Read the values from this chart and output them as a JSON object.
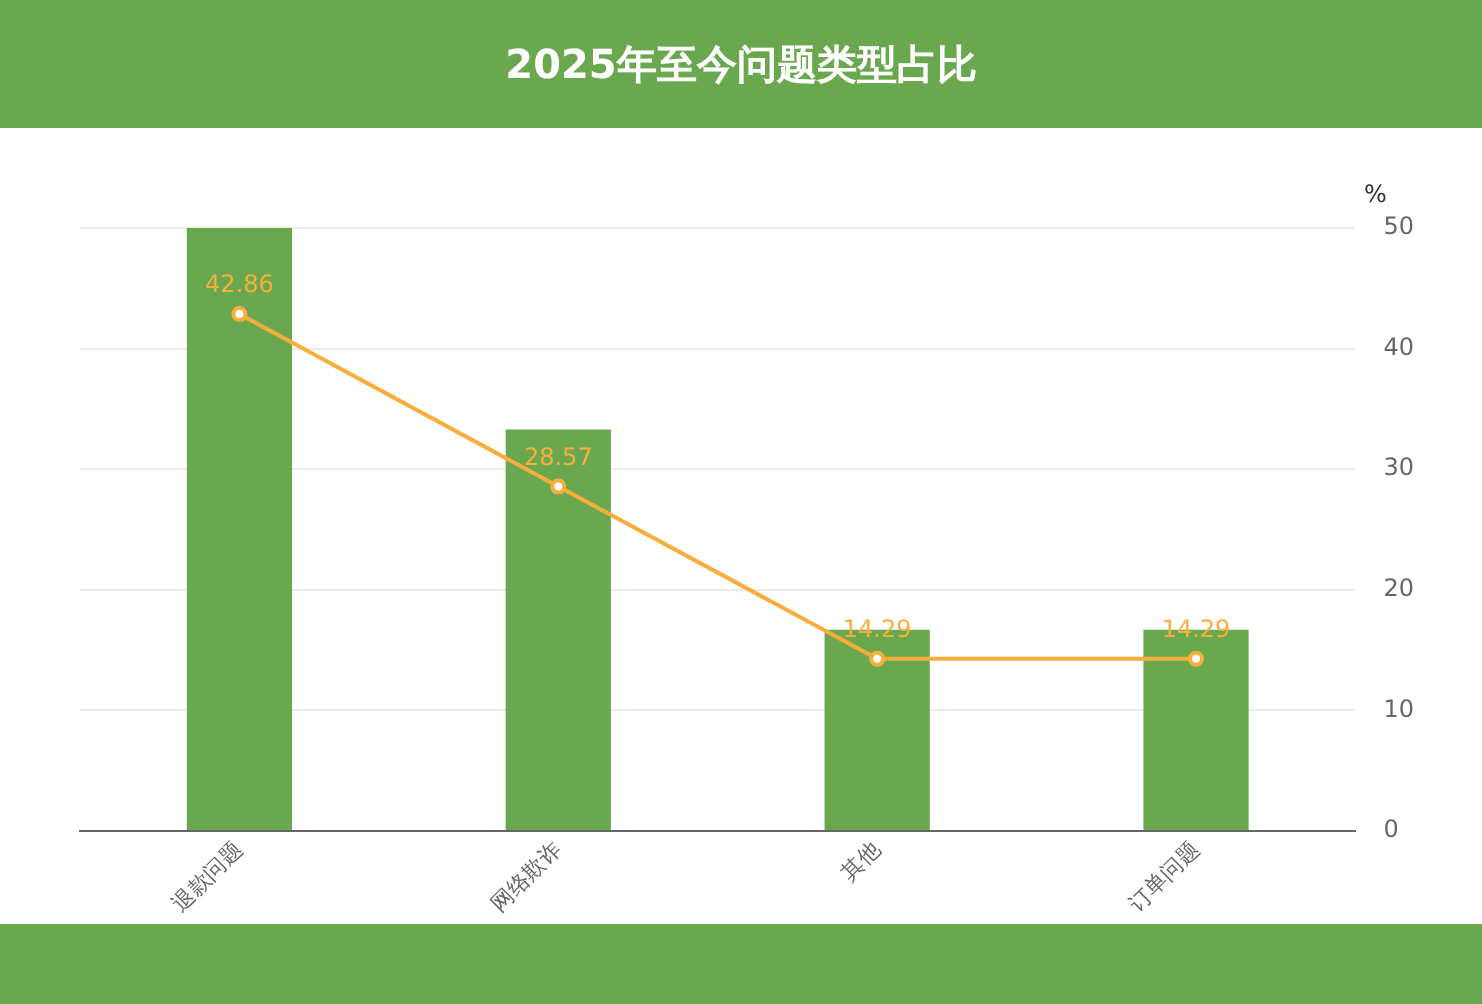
{
  "chart_data": {
    "type": "bar",
    "title": "2025年至今问题类型占比",
    "ylabel": "%",
    "categories": [
      "退款问题",
      "网络欺诈",
      "其他",
      "订单问题"
    ],
    "series": [
      {
        "color": "#6aa84f",
        "values": [
          50,
          33.3,
          16.7,
          16.7
        ]
      },
      {
        "type": "line",
        "color": "#f9ae3b",
        "values": [
          42.86,
          28.57,
          14.29,
          14.29
        ],
        "value_labels": [
          "42.86",
          "28.57",
          "14.29",
          "14.29"
        ]
      }
    ],
    "ylim": [
      0,
      50
    ],
    "yticks": [
      0,
      10,
      20,
      30,
      40,
      50
    ],
    "grid": "y",
    "legend": false,
    "marker": "circle"
  }
}
